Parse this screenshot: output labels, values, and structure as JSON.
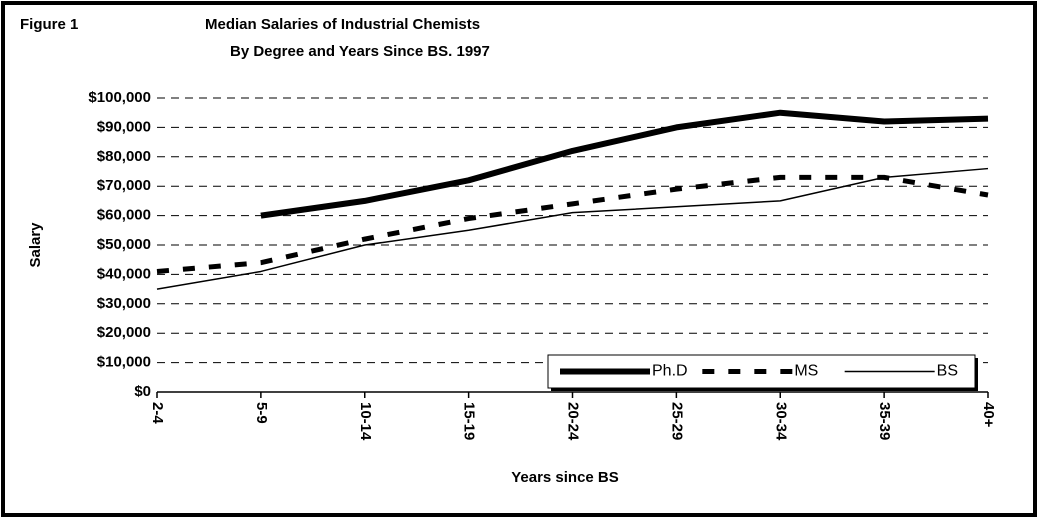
{
  "chart_data": {
    "type": "line",
    "figure": "Figure 1",
    "title": "Median Salaries of Industrial Chemists",
    "subtitle": "By Degree and Years Since BS. 1997",
    "y_label": "Salary",
    "x_label": "Years since BS",
    "categories": [
      "2-4",
      "5-9",
      "10-14",
      "15-19",
      "20-24",
      "25-29",
      "30-34",
      "35-39",
      "40+"
    ],
    "series": [
      {
        "name": "Ph.D",
        "color": "#000000",
        "line_width": 6,
        "dash": "none",
        "values": [
          null,
          60000,
          65000,
          72000,
          82000,
          90000,
          95000,
          92000,
          93000
        ]
      },
      {
        "name": "MS",
        "color": "#000000",
        "line_width": 5,
        "dash": "12 14",
        "values": [
          41000,
          44000,
          52000,
          59000,
          64000,
          69000,
          73000,
          73000,
          67000
        ]
      },
      {
        "name": "BS",
        "color": "#000000",
        "line_width": 1.5,
        "dash": "none",
        "values": [
          35000,
          41000,
          50000,
          55000,
          61000,
          63000,
          65000,
          73000,
          76000
        ]
      }
    ],
    "ylim": [
      0,
      100000
    ],
    "yticks": [
      {
        "value": 0,
        "label": "$0"
      },
      {
        "value": 10000,
        "label": "$10,000"
      },
      {
        "value": 20000,
        "label": "$20,000"
      },
      {
        "value": 30000,
        "label": "$30,000"
      },
      {
        "value": 40000,
        "label": "$40,000"
      },
      {
        "value": 50000,
        "label": "$50,000"
      },
      {
        "value": 60000,
        "label": "$60,000"
      },
      {
        "value": 70000,
        "label": "$70,000"
      },
      {
        "value": 80000,
        "label": "$80,000"
      },
      {
        "value": 90000,
        "label": "$90,000"
      },
      {
        "value": 100000,
        "label": "$100,000"
      }
    ],
    "grid": true,
    "legend": "lower right"
  }
}
